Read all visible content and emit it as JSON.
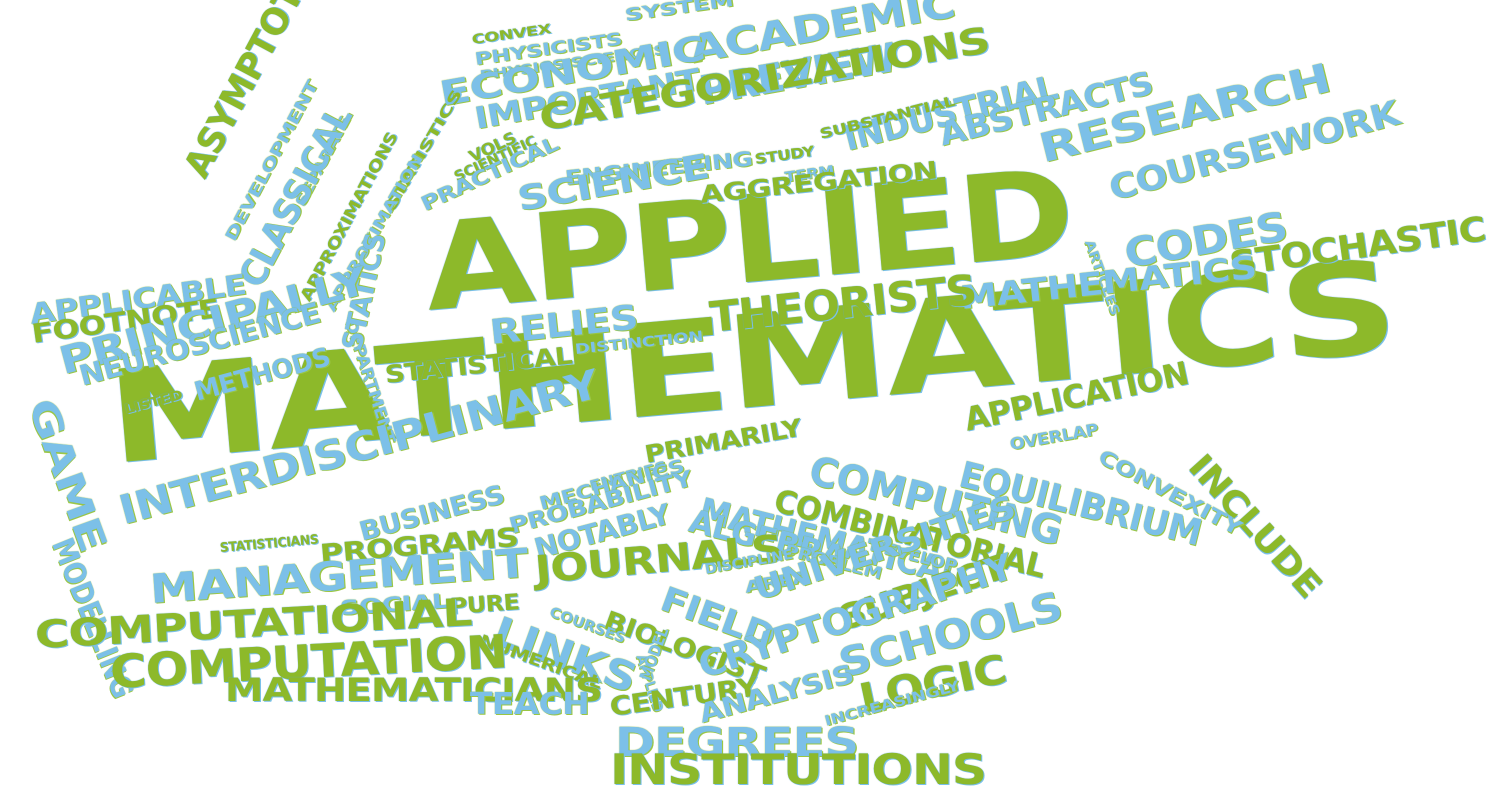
{
  "colors": {
    "green": "#8db92a",
    "blue": "#7cc0e8",
    "background": "#ffffff"
  },
  "words": [
    {
      "text": "APPLIED",
      "color": "green"
    },
    {
      "text": "MATHEMATICS",
      "color": "green"
    },
    {
      "text": "ACADEMIC",
      "color": "blue"
    },
    {
      "text": "SYSTEM",
      "color": "blue"
    },
    {
      "text": "CONVEX",
      "color": "green"
    },
    {
      "text": "PHYSICISTS",
      "color": "blue"
    },
    {
      "text": "PHYSICS SCIENCES",
      "color": "blue"
    },
    {
      "text": "ECONOMIC",
      "color": "blue"
    },
    {
      "text": "PREVIEW",
      "color": "blue"
    },
    {
      "text": "IMPORTANT",
      "color": "blue"
    },
    {
      "text": "CATEGORIZATIONS",
      "color": "green"
    },
    {
      "text": "INDUSTRIAL",
      "color": "blue"
    },
    {
      "text": "ABSTRACTS",
      "color": "blue"
    },
    {
      "text": "RESEARCH",
      "color": "blue"
    },
    {
      "text": "COURSEWORK",
      "color": "blue"
    },
    {
      "text": "SUBSTANTIAL",
      "color": "green"
    },
    {
      "text": "STUDY",
      "color": "green"
    },
    {
      "text": "TERM",
      "color": "blue"
    },
    {
      "text": "ENGINEERING",
      "color": "blue"
    },
    {
      "text": "SCIENCE",
      "color": "blue"
    },
    {
      "text": "AGGREGATION",
      "color": "green"
    },
    {
      "text": "SCIENTIFIC",
      "color": "green"
    },
    {
      "text": "PRACTICAL",
      "color": "blue"
    },
    {
      "text": "VOLS",
      "color": "green"
    },
    {
      "text": "STATISTICS",
      "color": "green"
    },
    {
      "text": "APPROXIMATION",
      "color": "blue"
    },
    {
      "text": "ASYMPTOTIC",
      "color": "green"
    },
    {
      "text": "DEVELOPMENT",
      "color": "blue"
    },
    {
      "text": "SEPARATE",
      "color": "blue"
    },
    {
      "text": "CLASSICAL",
      "color": "blue"
    },
    {
      "text": "APPROXIMATIONS",
      "color": "green"
    },
    {
      "text": "DEPARTMENT",
      "color": "blue"
    },
    {
      "text": "STATICS",
      "color": "blue"
    },
    {
      "text": "ARTICLES",
      "color": "blue"
    },
    {
      "text": "CODES",
      "color": "blue"
    },
    {
      "text": "STOCHASTIC",
      "color": "green"
    },
    {
      "text": "MATHEMATICS",
      "color": "blue"
    },
    {
      "text": "THEORISTS",
      "color": "green"
    },
    {
      "text": "RELIES",
      "color": "blue"
    },
    {
      "text": "APPLICABLE",
      "color": "blue"
    },
    {
      "text": "FOOTNOTE",
      "color": "green"
    },
    {
      "text": "PRINCIPALLY",
      "color": "blue"
    },
    {
      "text": "NEUROSCIENCE",
      "color": "blue"
    },
    {
      "text": "METHODS",
      "color": "blue"
    },
    {
      "text": "LISTED",
      "color": "green"
    },
    {
      "text": "STATISTICAL",
      "color": "green"
    },
    {
      "text": "DISTINCTION",
      "color": "blue"
    },
    {
      "text": "GAME",
      "color": "blue"
    },
    {
      "text": "MODELLING",
      "color": "blue"
    },
    {
      "text": "APPLICATION",
      "color": "green"
    },
    {
      "text": "INCLUDE",
      "color": "green"
    },
    {
      "text": "OVERLAP",
      "color": "blue"
    },
    {
      "text": "CONVEXITY",
      "color": "blue"
    },
    {
      "text": "COMPUTING",
      "color": "blue"
    },
    {
      "text": "EQUILIBRIUM",
      "color": "blue"
    },
    {
      "text": "PRIMARILY",
      "color": "green"
    },
    {
      "text": "COMBINATORIAL",
      "color": "green"
    },
    {
      "text": "INTERDISCIPLINARY",
      "color": "blue"
    },
    {
      "text": "ENTRIES",
      "color": "blue"
    },
    {
      "text": "MECHANICS",
      "color": "blue"
    },
    {
      "text": "MATHEMATICAL",
      "color": "blue"
    },
    {
      "text": "PROBABILITY",
      "color": "blue"
    },
    {
      "text": "ALGEBRA",
      "color": "blue"
    },
    {
      "text": "BUSINESS",
      "color": "blue"
    },
    {
      "text": "NOTABLY",
      "color": "blue"
    },
    {
      "text": "STATISTICIANS",
      "color": "green"
    },
    {
      "text": "PROBLEM",
      "color": "blue"
    },
    {
      "text": "DEVELOP",
      "color": "blue"
    },
    {
      "text": "PROGRAMS",
      "color": "green"
    },
    {
      "text": "JOURNALS",
      "color": "green"
    },
    {
      "text": "DISCIPLINE",
      "color": "blue"
    },
    {
      "text": "AREA",
      "color": "blue"
    },
    {
      "text": "UNIVERSITIES",
      "color": "blue"
    },
    {
      "text": "MANAGEMENT",
      "color": "blue"
    },
    {
      "text": "SOCIAL",
      "color": "blue"
    },
    {
      "text": "PURE",
      "color": "green"
    },
    {
      "text": "FIELD",
      "color": "blue"
    },
    {
      "text": "BIOLOGIST",
      "color": "green"
    },
    {
      "text": "SUBJECT",
      "color": "green"
    },
    {
      "text": "COURSES",
      "color": "blue"
    },
    {
      "text": "LINKS",
      "color": "blue"
    },
    {
      "text": "NUMERICAL",
      "color": "green"
    },
    {
      "text": "APPLIED",
      "color": "blue"
    },
    {
      "text": "MODEL",
      "color": "blue"
    },
    {
      "text": "CRYPTOGRAPHY",
      "color": "blue"
    },
    {
      "text": "SCHOOLS",
      "color": "blue"
    },
    {
      "text": "COMPUTATIONAL",
      "color": "green"
    },
    {
      "text": "COMPUTATION",
      "color": "green"
    },
    {
      "text": "MATHEMATICIANS",
      "color": "green"
    },
    {
      "text": "TEACH",
      "color": "blue"
    },
    {
      "text": "CENTURY",
      "color": "green"
    },
    {
      "text": "LOGIC",
      "color": "green"
    },
    {
      "text": "ANALYSIS",
      "color": "blue"
    },
    {
      "text": "INCREASINGLY",
      "color": "blue"
    },
    {
      "text": "DEGREES",
      "color": "blue"
    },
    {
      "text": "INSTITUTIONS",
      "color": "green"
    }
  ]
}
